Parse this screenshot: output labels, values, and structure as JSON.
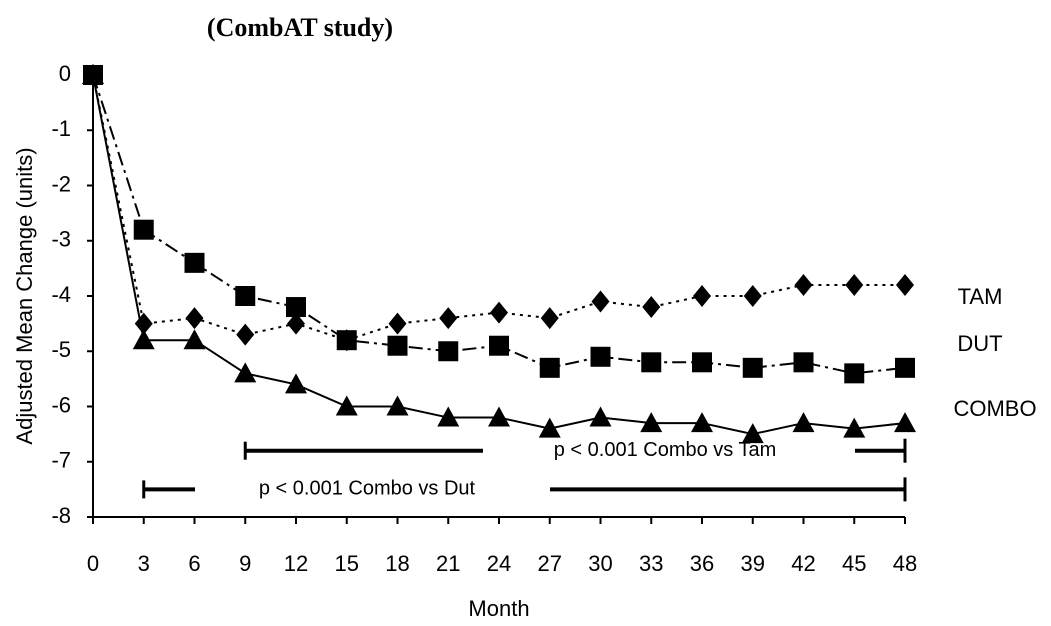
{
  "chart_data": {
    "type": "line",
    "title": "(CombAT study)",
    "y_label": "Adjusted Mean Change (units)",
    "x_label": "Month",
    "x": [
      0,
      3,
      6,
      9,
      12,
      15,
      18,
      21,
      24,
      27,
      30,
      33,
      36,
      39,
      42,
      45,
      48
    ],
    "xlim": [
      0,
      48
    ],
    "xticks": [
      0,
      3,
      6,
      9,
      12,
      15,
      18,
      21,
      24,
      27,
      30,
      33,
      36,
      39,
      42,
      45,
      48
    ],
    "ylim": [
      -8,
      0
    ],
    "yticks": [
      0,
      -1,
      -2,
      -3,
      -4,
      -5,
      -6,
      -7,
      -8
    ],
    "series": [
      {
        "name": "TAM",
        "color": "#000000",
        "marker": "diamond",
        "linestyle": "dotted",
        "values": [
          0,
          -4.5,
          -4.4,
          -4.7,
          -4.5,
          -4.8,
          -4.5,
          -4.4,
          -4.3,
          -4.4,
          -4.1,
          -4.2,
          -4.0,
          -4.0,
          -3.8,
          -3.8,
          -3.8
        ]
      },
      {
        "name": "DUT",
        "color": "#000000",
        "marker": "square",
        "linestyle": "dashdot",
        "values": [
          0,
          -2.8,
          -3.4,
          -4.0,
          -4.2,
          -4.8,
          -4.9,
          -5.0,
          -4.9,
          -5.3,
          -5.1,
          -5.2,
          -5.2,
          -5.3,
          -5.2,
          -5.4,
          -5.3
        ]
      },
      {
        "name": "COMBO",
        "color": "#000000",
        "marker": "triangle",
        "linestyle": "solid",
        "values": [
          0,
          -4.8,
          -4.8,
          -5.4,
          -5.6,
          -6.0,
          -6.0,
          -6.2,
          -6.2,
          -6.4,
          -6.2,
          -6.3,
          -6.3,
          -6.5,
          -6.3,
          -6.4,
          -6.3
        ]
      }
    ],
    "annotations": [
      {
        "text": "p < 0.001 Combo vs Tam",
        "x": [
          9,
          48
        ],
        "y": -6.8
      },
      {
        "text": "p < 0.001 Combo vs Dut",
        "x": [
          3,
          48
        ],
        "y": -7.5
      }
    ]
  }
}
